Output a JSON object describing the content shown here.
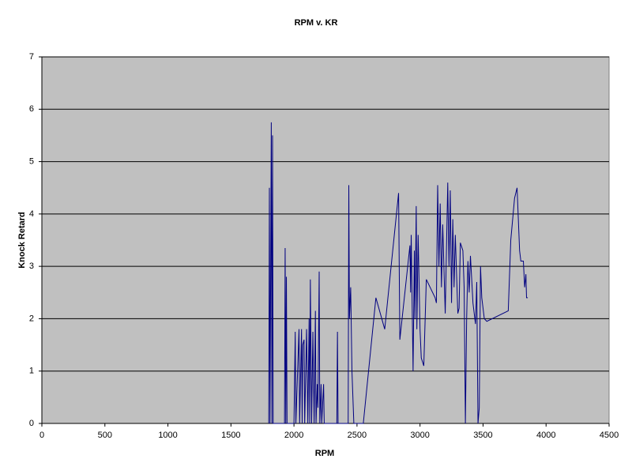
{
  "chart_data": {
    "type": "line",
    "title": "RPM v. KR",
    "x_label": "RPM",
    "y_label": "Knock Retard",
    "color": "#000080",
    "plot_background": "#c0c0c0",
    "grid": true,
    "xlim": [
      0,
      4500
    ],
    "xticks": [
      0,
      500,
      1000,
      1500,
      2000,
      2500,
      3000,
      3500,
      4000,
      4500
    ],
    "ylim": [
      0,
      7
    ],
    "yticks": [
      0,
      1,
      2,
      3,
      4,
      5,
      6,
      7
    ],
    "x": [
      1800,
      1805,
      1810,
      1815,
      1820,
      1825,
      1830,
      1835,
      1925,
      1930,
      1935,
      1940,
      1945,
      2000,
      2010,
      2015,
      2040,
      2045,
      2060,
      2065,
      2070,
      2080,
      2085,
      2100,
      2110,
      2120,
      2125,
      2130,
      2140,
      2150,
      2160,
      2170,
      2175,
      2185,
      2190,
      2200,
      2205,
      2215,
      2220,
      2235,
      2240,
      2340,
      2345,
      2350,
      2430,
      2435,
      2440,
      2450,
      2460,
      2475,
      2550,
      2650,
      2720,
      2830,
      2840,
      2920,
      2925,
      2930,
      2945,
      2955,
      2960,
      2970,
      2975,
      2985,
      3000,
      3010,
      3030,
      3050,
      3120,
      3130,
      3140,
      3150,
      3160,
      3170,
      3180,
      3200,
      3220,
      3230,
      3240,
      3250,
      3260,
      3270,
      3280,
      3300,
      3310,
      3320,
      3340,
      3350,
      3360,
      3370,
      3380,
      3390,
      3400,
      3420,
      3440,
      3450,
      3460,
      3470,
      3480,
      3490,
      3510,
      3530,
      3700,
      3720,
      3750,
      3770,
      3790,
      3800,
      3820,
      3830,
      3840,
      3845,
      3855
    ],
    "values": [
      0,
      4.5,
      0,
      2.8,
      5.75,
      0,
      5.5,
      0,
      0,
      3.35,
      0,
      2.8,
      0,
      0,
      1.75,
      0,
      1.8,
      0,
      1.8,
      0,
      1.5,
      1.6,
      0,
      1.8,
      0,
      2.0,
      0,
      2.75,
      0,
      1.75,
      0,
      2.15,
      0,
      0.75,
      0.3,
      2.9,
      0,
      0.75,
      0,
      0.75,
      0,
      0,
      1.75,
      0,
      0,
      4.55,
      2.0,
      2.6,
      1.0,
      0,
      0,
      2.4,
      1.8,
      4.4,
      1.6,
      3.4,
      2.5,
      3.6,
      1.0,
      3.3,
      2.0,
      4.15,
      1.8,
      3.6,
      1.8,
      1.25,
      1.1,
      2.75,
      2.4,
      2.3,
      4.55,
      3.0,
      4.2,
      2.6,
      3.8,
      2.1,
      4.6,
      3.0,
      4.45,
      2.3,
      3.9,
      2.6,
      3.6,
      2.1,
      2.2,
      3.45,
      3.3,
      2.6,
      0,
      2.0,
      3.1,
      2.5,
      3.2,
      2.3,
      1.9,
      2.7,
      0,
      0.3,
      3.0,
      2.4,
      2.0,
      1.95,
      2.15,
      3.5,
      4.3,
      4.5,
      3.3,
      3.1,
      3.1,
      2.6,
      2.85,
      2.4,
      2.4
    ]
  }
}
